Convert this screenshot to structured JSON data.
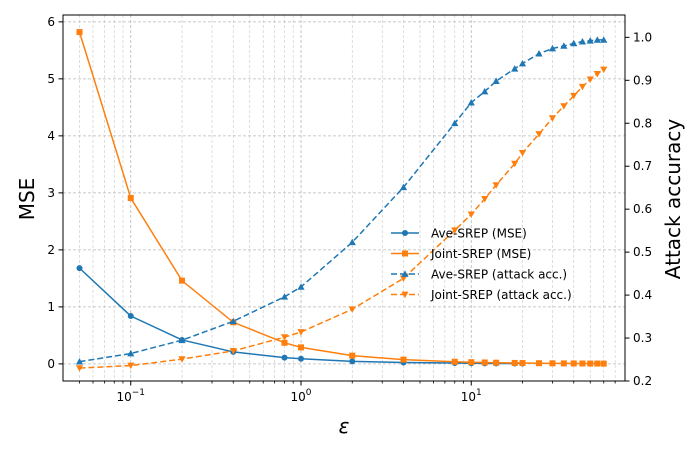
{
  "chart_data": {
    "type": "line",
    "xlabel": "ε",
    "ylabel": "MSE",
    "y2label": "Attack accuracy",
    "xscale": "log",
    "xlim": [
      0.04,
      80
    ],
    "ylim": [
      -0.3,
      6.12
    ],
    "y2lim": [
      0.2,
      1.052
    ],
    "grid": true,
    "legend_position": "center-right",
    "x_ticks": [
      {
        "value": 0.1,
        "base": "10",
        "exp": "−1"
      },
      {
        "value": 1,
        "base": "10",
        "exp": "0"
      },
      {
        "value": 10,
        "base": "10",
        "exp": "1"
      }
    ],
    "y_ticks": [
      {
        "value": 0,
        "label": "0"
      },
      {
        "value": 1,
        "label": "1"
      },
      {
        "value": 2,
        "label": "2"
      },
      {
        "value": 3,
        "label": "3"
      },
      {
        "value": 4,
        "label": "4"
      },
      {
        "value": 5,
        "label": "5"
      },
      {
        "value": 6,
        "label": "6"
      }
    ],
    "y2_ticks": [
      {
        "value": 0.2,
        "label": "0.2"
      },
      {
        "value": 0.3,
        "label": "0.3"
      },
      {
        "value": 0.4,
        "label": "0.4"
      },
      {
        "value": 0.5,
        "label": "0.5"
      },
      {
        "value": 0.6,
        "label": "0.6"
      },
      {
        "value": 0.7,
        "label": "0.7"
      },
      {
        "value": 0.8,
        "label": "0.8"
      },
      {
        "value": 0.9,
        "label": "0.9"
      },
      {
        "value": 1.0,
        "label": "1.0"
      }
    ],
    "series": [
      {
        "name": "Ave-SREP (MSE)",
        "axis": "left",
        "color": "#1f77b4",
        "dash": "solid",
        "marker": "circle",
        "x": [
          0.05,
          0.1,
          0.2,
          0.4,
          0.8,
          1,
          2,
          4,
          8,
          10,
          12,
          14,
          18,
          20
        ],
        "y": [
          1.68,
          0.84,
          0.42,
          0.21,
          0.11,
          0.09,
          0.045,
          0.025,
          0.015,
          0.012,
          0.01,
          0.008,
          0.007,
          0.006
        ]
      },
      {
        "name": "Joint-SREP (MSE)",
        "axis": "left",
        "color": "#ff7f0e",
        "dash": "solid",
        "marker": "square",
        "x": [
          0.05,
          0.1,
          0.2,
          0.4,
          0.8,
          1,
          2,
          4,
          8,
          10,
          12,
          14,
          18,
          20,
          25,
          30,
          35,
          40,
          45,
          50,
          55,
          60
        ],
        "y": [
          5.82,
          2.91,
          1.46,
          0.73,
          0.37,
          0.29,
          0.145,
          0.075,
          0.038,
          0.03,
          0.025,
          0.021,
          0.017,
          0.015,
          0.012,
          0.01,
          0.009,
          0.008,
          0.007,
          0.006,
          0.006,
          0.005
        ]
      },
      {
        "name": "Ave-SREP (attack acc.)",
        "axis": "right",
        "color": "#1f77b4",
        "dash": "dashed",
        "marker": "triangle-up",
        "x": [
          0.05,
          0.1,
          0.2,
          0.4,
          0.8,
          1,
          2,
          4,
          8,
          10,
          12,
          14,
          18,
          20,
          25,
          30,
          35,
          40,
          45,
          50,
          55,
          60
        ],
        "y": [
          0.245,
          0.264,
          0.295,
          0.339,
          0.396,
          0.419,
          0.523,
          0.651,
          0.8,
          0.848,
          0.874,
          0.898,
          0.927,
          0.939,
          0.962,
          0.974,
          0.98,
          0.986,
          0.99,
          0.992,
          0.994,
          0.994
        ]
      },
      {
        "name": "Joint-SREP (attack acc.)",
        "axis": "right",
        "color": "#ff7f0e",
        "dash": "dashed",
        "marker": "triangle-down",
        "x": [
          0.05,
          0.1,
          0.2,
          0.4,
          0.8,
          1,
          2,
          4,
          8,
          10,
          12,
          14,
          18,
          20,
          25,
          30,
          35,
          40,
          45,
          50,
          55,
          60
        ],
        "y": [
          0.23,
          0.236,
          0.251,
          0.27,
          0.302,
          0.314,
          0.367,
          0.439,
          0.551,
          0.588,
          0.624,
          0.656,
          0.706,
          0.731,
          0.775,
          0.812,
          0.84,
          0.864,
          0.885,
          0.902,
          0.915,
          0.925
        ]
      }
    ]
  }
}
